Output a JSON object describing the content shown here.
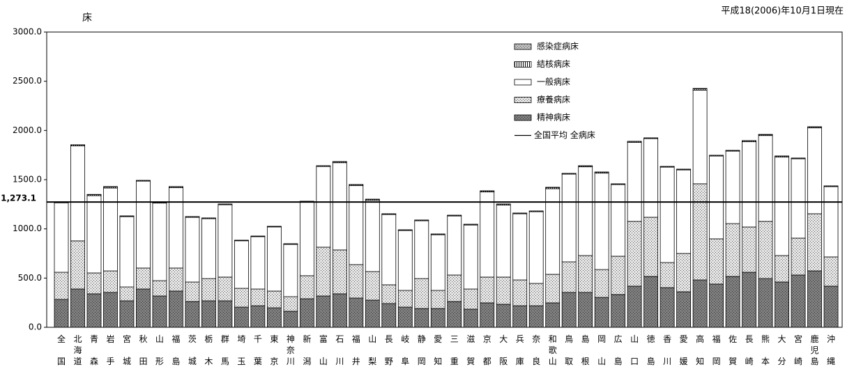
{
  "chart_data": {
    "type": "bar",
    "stacked": true,
    "y_label": "床",
    "note": "平成18(2006)年10月1日現在",
    "categories": [
      "全国",
      "北海道",
      "青森",
      "岩手",
      "宮城",
      "秋田",
      "山形",
      "福島",
      "茨城",
      "栃木",
      "群馬",
      "埼玉",
      "千葉",
      "東京",
      "神奈川",
      "新潟",
      "富山",
      "石川",
      "福井",
      "山梨",
      "長野",
      "岐阜",
      "静岡",
      "愛知",
      "三重",
      "滋賀",
      "京都",
      "大阪",
      "兵庫",
      "奈良",
      "和歌山",
      "鳥取",
      "島根",
      "岡山",
      "広島",
      "山口",
      "徳島",
      "香川",
      "愛媛",
      "高知",
      "福岡",
      "佐賀",
      "長崎",
      "熊本",
      "大分",
      "宮崎",
      "鹿児島",
      "沖縄"
    ],
    "series": [
      {
        "name": "精神病床",
        "color": "#7f7f7f",
        "values": [
          283,
          389,
          340,
          354,
          269,
          389,
          318,
          368,
          262,
          269,
          269,
          205,
          219,
          198,
          163,
          290,
          318,
          340,
          297,
          276,
          241,
          205,
          191,
          191,
          262,
          184,
          248,
          234,
          219,
          219,
          248,
          354,
          354,
          304,
          333,
          418,
          517,
          403,
          361,
          481,
          439,
          517,
          559,
          495,
          460,
          531,
          573,
          418
        ]
      },
      {
        "name": "療養病床",
        "color": "#e6e6e6",
        "values": [
          276,
          489,
          212,
          219,
          141,
          213,
          156,
          234,
          198,
          226,
          241,
          191,
          170,
          170,
          148,
          234,
          496,
          446,
          340,
          290,
          191,
          170,
          304,
          184,
          269,
          205,
          262,
          276,
          262,
          227,
          290,
          311,
          375,
          283,
          389,
          658,
          601,
          255,
          389,
          977,
          460,
          537,
          460,
          581,
          269,
          375,
          581,
          297
        ]
      },
      {
        "name": "一般病床",
        "color": "#ffffff",
        "values": [
          706,
          965,
          786,
          842,
          714,
          883,
          788,
          816,
          657,
          608,
          735,
          483,
          532,
          652,
          532,
          749,
          820,
          886,
          802,
          724,
          714,
          608,
          587,
          565,
          600,
          650,
          865,
          731,
          672,
          728,
          870,
          891,
          901,
          979,
          728,
          802,
          799,
          969,
          849,
          952,
          841,
          736,
          866,
          872,
          1000,
          806,
          872,
          714
        ]
      },
      {
        "name": "結核病床",
        "color": "#000000",
        "values": [
          9,
          11,
          10,
          12,
          7,
          7,
          7,
          10,
          7,
          7,
          7,
          5,
          5,
          5,
          5,
          7,
          7,
          10,
          10,
          10,
          7,
          7,
          7,
          7,
          7,
          7,
          10,
          10,
          7,
          7,
          12,
          7,
          10,
          10,
          7,
          10,
          7,
          7,
          7,
          13,
          7,
          7,
          10,
          9,
          10,
          7,
          10,
          7
        ]
      },
      {
        "name": "感染症病床",
        "color": "#bfbfbf",
        "values": [
          1,
          1,
          2,
          3,
          1,
          1,
          1,
          2,
          1,
          1,
          1,
          1,
          1,
          1,
          1,
          1,
          1,
          2,
          2,
          2,
          1,
          1,
          1,
          1,
          1,
          1,
          2,
          2,
          1,
          1,
          3,
          1,
          2,
          2,
          1,
          2,
          1,
          1,
          1,
          4,
          1,
          1,
          2,
          3,
          2,
          1,
          2,
          1
        ]
      }
    ],
    "average_line": {
      "name": "全国平均 全病床",
      "value": 1273.1,
      "label": "1,273.1",
      "color": "#000000"
    },
    "ylim": [
      0,
      3000
    ],
    "yticks": [
      {
        "value": 0,
        "label": "0.0"
      },
      {
        "value": 500,
        "label": "500.0"
      },
      {
        "value": 1000,
        "label": "1000.0"
      },
      {
        "value": 1500,
        "label": "1500.0"
      },
      {
        "value": 2000,
        "label": "2000.0"
      },
      {
        "value": 2500,
        "label": "2500.0"
      },
      {
        "value": 3000,
        "label": "3000.0"
      }
    ],
    "legend": "top-right",
    "grid": false
  }
}
